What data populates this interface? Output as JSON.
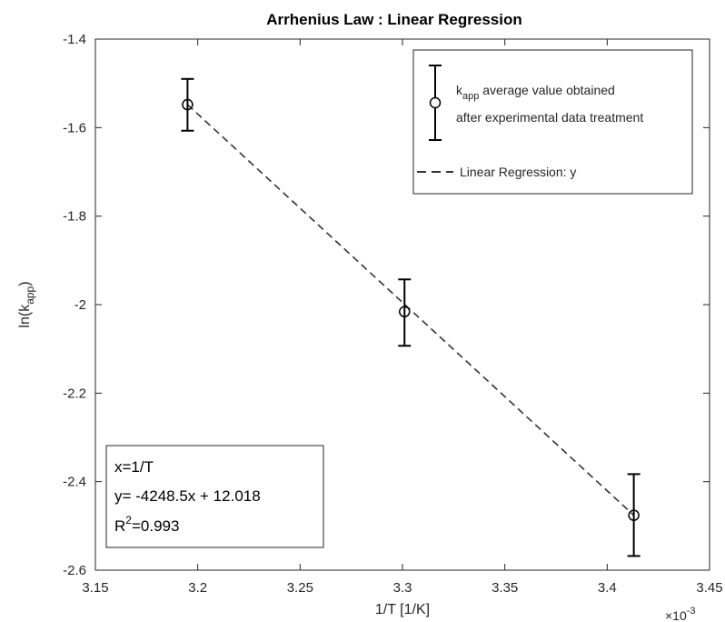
{
  "chart_data": {
    "type": "scatter",
    "title": "Arrhenius Law : Linear Regression",
    "xlabel": "1/T [1/K]",
    "ylabel": {
      "base": "ln(k",
      "sub": "app",
      "close": ")"
    },
    "x_exponent": {
      "prefix": "×10",
      "power": "-3"
    },
    "xlim": [
      3.15,
      3.45
    ],
    "ylim": [
      -2.6,
      -1.4
    ],
    "x_scale_factor": 0.001,
    "x_ticks": [
      3.15,
      3.2,
      3.25,
      3.3,
      3.35,
      3.4,
      3.45
    ],
    "x_tick_labels": [
      "3.15",
      "3.2",
      "3.25",
      "3.3",
      "3.35",
      "3.4",
      "3.45"
    ],
    "y_ticks": [
      -2.6,
      -2.4,
      -2.2,
      -2.0,
      -1.8,
      -1.6,
      -1.4
    ],
    "y_tick_labels": [
      "-2.6",
      "-2.4",
      "-2.2",
      "-2",
      "-1.8",
      "-1.6",
      "-1.4"
    ],
    "grid": false,
    "legend_placement": "top-right",
    "series": [
      {
        "kind": "errorbar",
        "marker": "circle",
        "points": [
          {
            "x": 3.195,
            "y": -1.548,
            "y_low": -1.607,
            "y_high": -1.49
          },
          {
            "x": 3.301,
            "y": -2.016,
            "y_low": -2.093,
            "y_high": -1.943
          },
          {
            "x": 3.413,
            "y": -2.476,
            "y_low": -2.568,
            "y_high": -2.383
          }
        ]
      },
      {
        "kind": "line",
        "style": "dashed",
        "x": [
          3.195,
          3.413
        ],
        "y": [
          -1.548,
          -2.476
        ]
      }
    ],
    "legend": [
      {
        "pre": "k",
        "sub": "app",
        "post": " average value obtained",
        "line2": "after experimental data treatment"
      },
      {
        "text": "Linear Regression: y"
      }
    ],
    "annotation": {
      "line1": "x=1/T",
      "line2": "y= -4248.5x + 12.018",
      "line3_base": "R",
      "line3_sup": "2",
      "line3_rest": "=0.993"
    },
    "colors": {
      "marker": "#000000",
      "regression": "#333333",
      "axes": "#262626"
    }
  }
}
